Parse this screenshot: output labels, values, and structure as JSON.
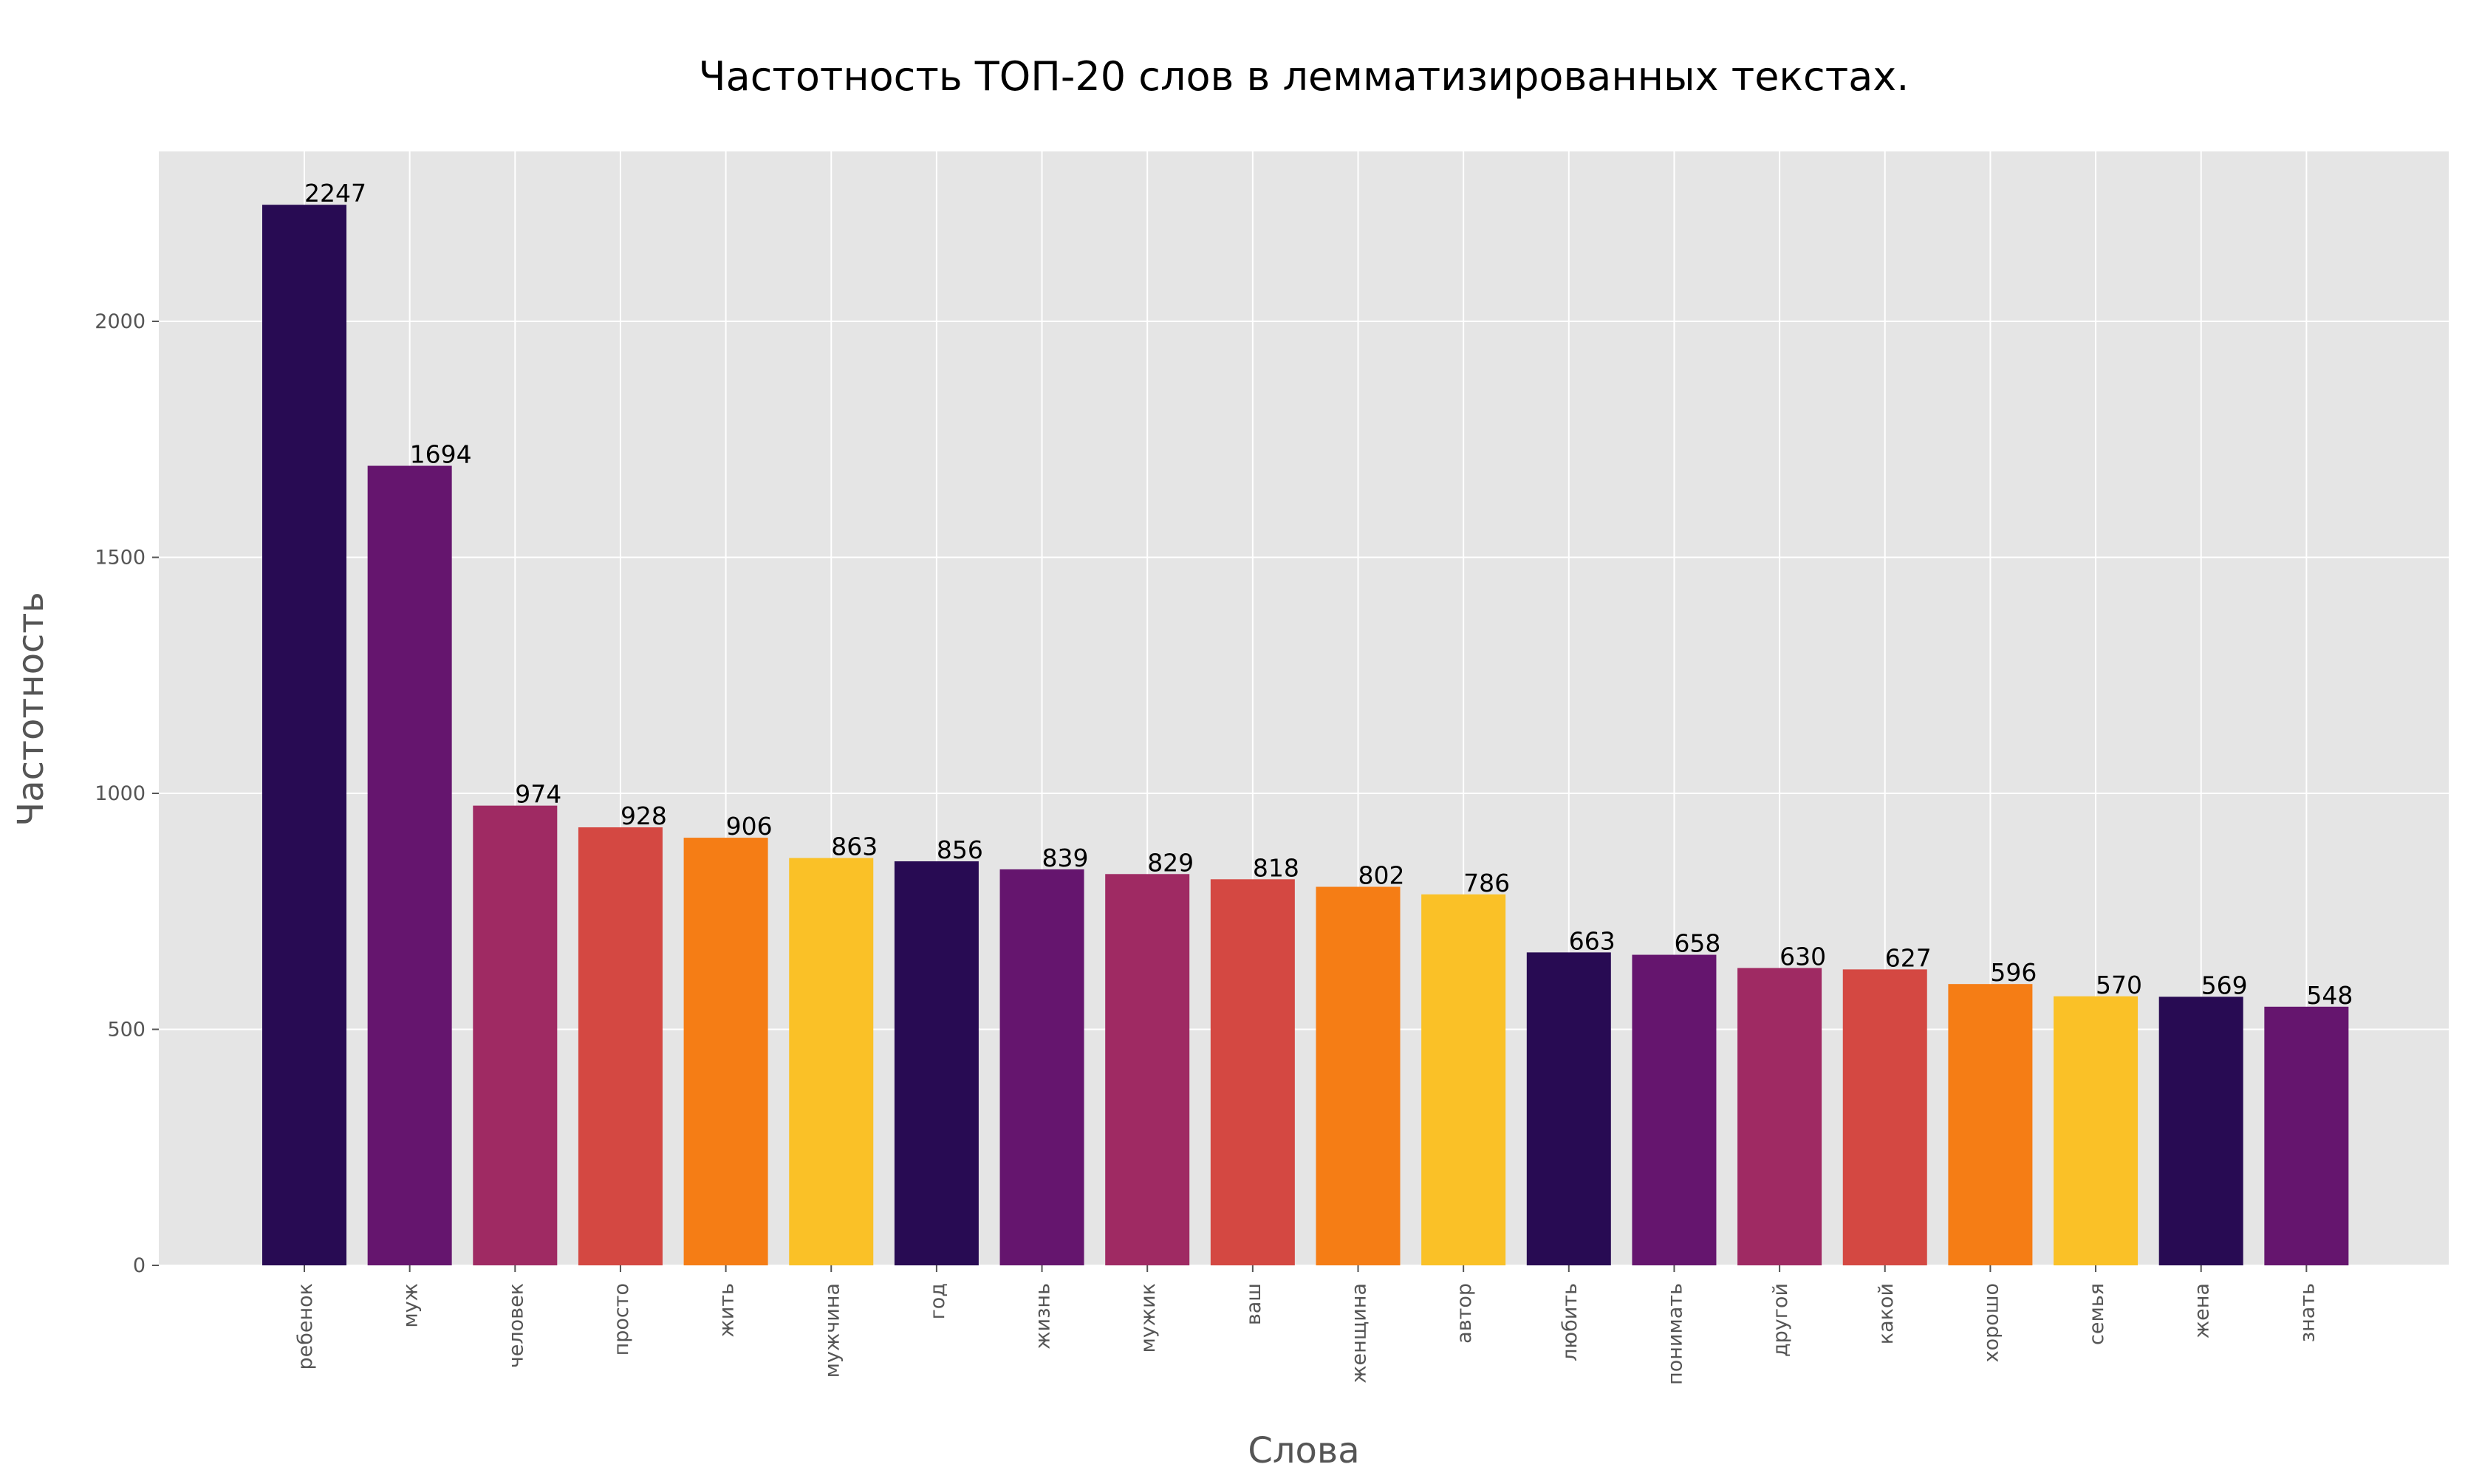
{
  "chart_data": {
    "type": "bar",
    "title": "Частотность ТОП-20 слов в лемматизированных текстах.",
    "xlabel": "Слова",
    "ylabel": "Частотность",
    "categories": [
      "ребенок",
      "муж",
      "человек",
      "просто",
      "жить",
      "мужчина",
      "год",
      "жизнь",
      "мужик",
      "ваш",
      "женщина",
      "автор",
      "любить",
      "понимать",
      "другой",
      "какой",
      "хорошо",
      "семья",
      "жена",
      "знать"
    ],
    "values": [
      2247,
      1694,
      974,
      928,
      906,
      863,
      856,
      839,
      829,
      818,
      802,
      786,
      663,
      658,
      630,
      627,
      596,
      570,
      569,
      548
    ],
    "value_labels": [
      "2247",
      "1694",
      "974",
      "928",
      "906",
      "863",
      "856",
      "839",
      "829",
      "818",
      "802",
      "786",
      "663",
      "658",
      "630",
      "627",
      "596",
      "570",
      "569",
      "548"
    ],
    "ylim": [
      0,
      2360
    ],
    "yticks": [
      0,
      500,
      1000,
      1500,
      2000
    ],
    "ytick_labels": [
      "0",
      "500",
      "1000",
      "1500",
      "2000"
    ],
    "grid": true,
    "legend": "none",
    "colors": [
      "#280b53",
      "#65156e",
      "#9f2a63",
      "#d44842",
      "#f57d15",
      "#fac127"
    ],
    "plot_background": "#e5e5e5",
    "grid_color": "#ffffff",
    "axis_text_color": "#555555"
  }
}
